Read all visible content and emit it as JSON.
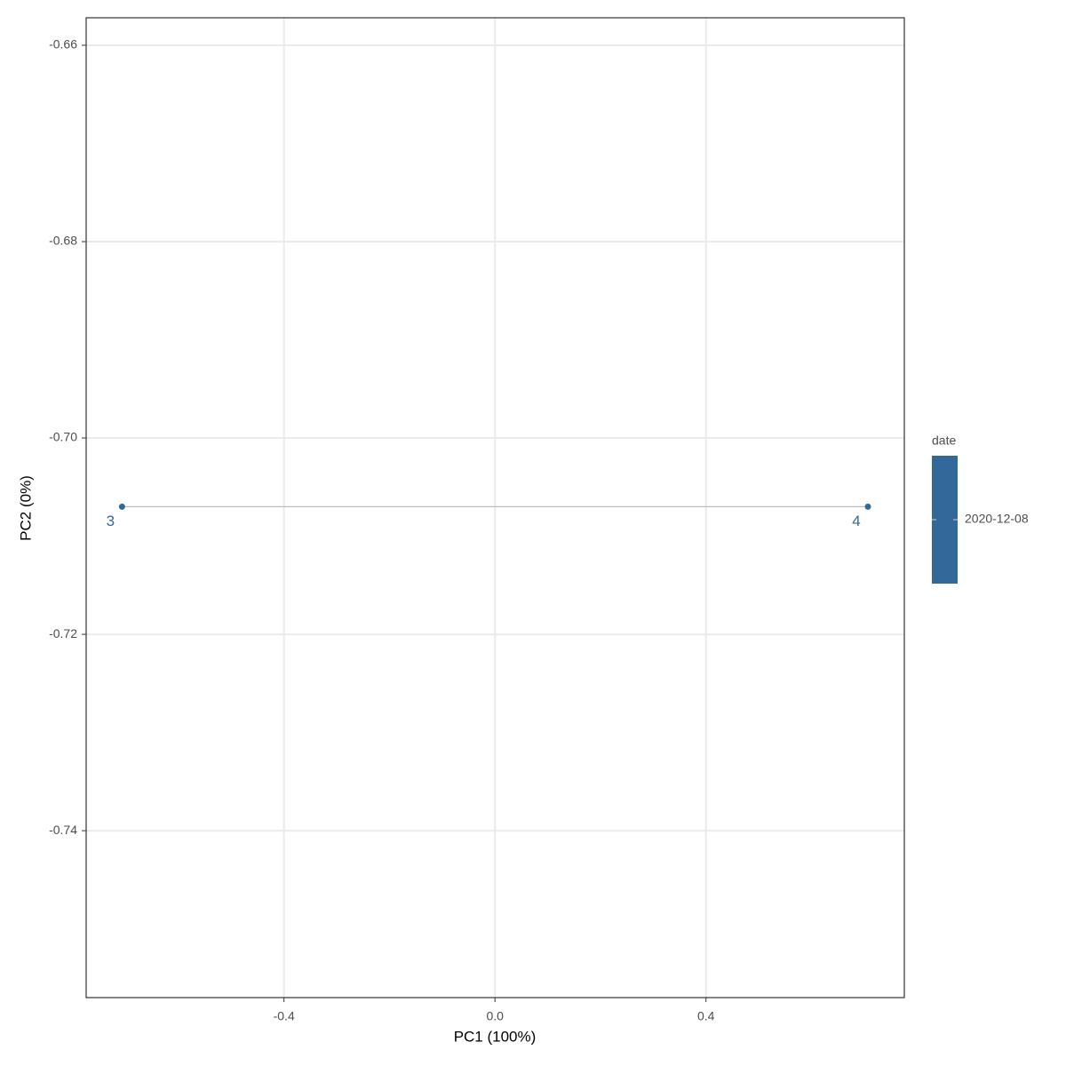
{
  "chart_data": {
    "type": "scatter",
    "x_label": "PC1 (100%)",
    "y_label": "PC2 (0%)",
    "x": [
      -0.707,
      0.707
    ],
    "series": [
      {
        "values": [
          -0.707,
          -0.707
        ],
        "point_labels": [
          "3",
          "4"
        ],
        "color": "#33689a"
      }
    ],
    "line_color": "#bdbdbd",
    "xlim": [
      -0.775,
      0.776
    ],
    "xticks": [
      -0.4,
      {
        "value": 0,
        "label": "0.0"
      },
      0.4
    ],
    "ylim": [
      -0.757,
      -0.6572
    ],
    "yticks": [
      -0.66,
      -0.68,
      {
        "value": -0.7,
        "label": "-0.70"
      },
      -0.72,
      -0.74
    ],
    "grid": true,
    "legend": {
      "title": "date",
      "labels": [
        "2020-12-08"
      ]
    }
  }
}
